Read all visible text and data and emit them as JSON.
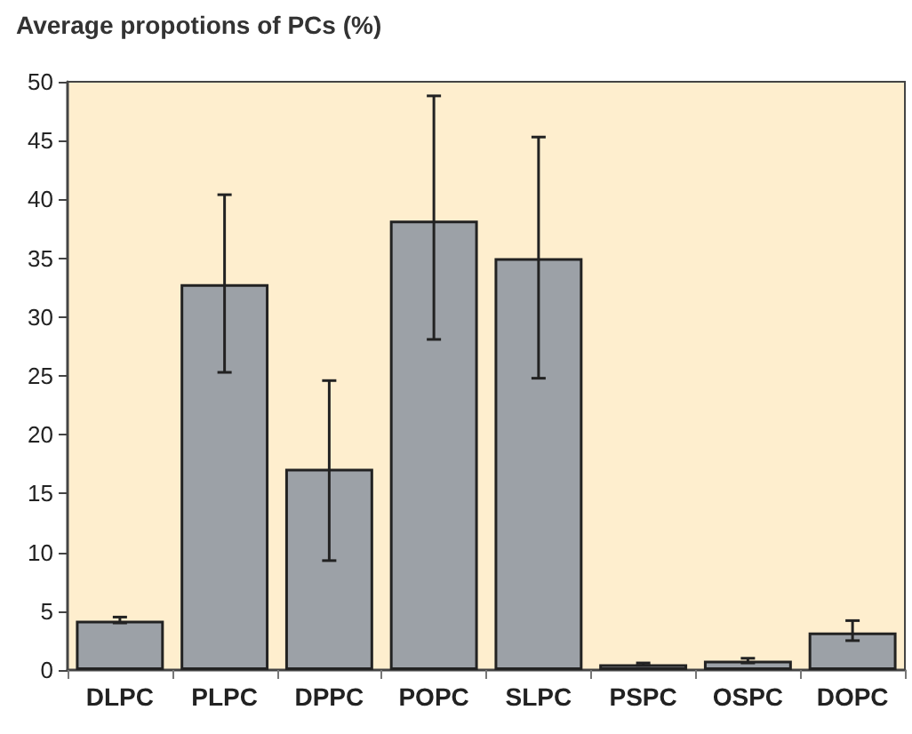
{
  "chart_data": {
    "type": "bar",
    "title": "Average propotions of PCs (%)",
    "categories": [
      "DLPC",
      "PLPC",
      "DPPC",
      "POPC",
      "SLPC",
      "PSPC",
      "OSPC",
      "DOPC"
    ],
    "values": [
      4.2,
      32.8,
      17.1,
      38.2,
      35.0,
      0.5,
      0.8,
      3.2
    ],
    "errors": [
      [
        4.0,
        4.5
      ],
      [
        25.3,
        40.4
      ],
      [
        9.3,
        24.6
      ],
      [
        28.1,
        48.8
      ],
      [
        24.8,
        45.3
      ],
      [
        0.4,
        0.6
      ],
      [
        0.6,
        1.0
      ],
      [
        2.5,
        4.2
      ]
    ],
    "color": "#9ca1a7",
    "ylim": [
      0,
      50
    ],
    "yticks": [
      0,
      5,
      10,
      15,
      20,
      25,
      30,
      35,
      40,
      45,
      50
    ],
    "grid": false
  }
}
